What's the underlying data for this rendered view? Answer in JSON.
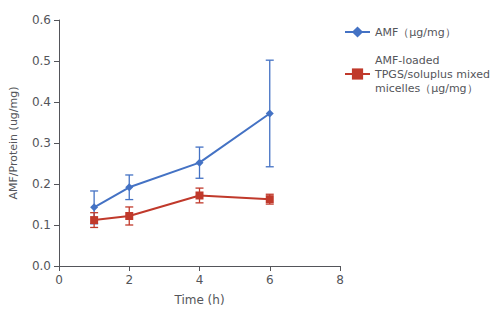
{
  "chart_data": {
    "type": "line",
    "xlabel": "Time (h)",
    "ylabel": "AMF/Protein (ug/mg)",
    "xlim": [
      0,
      8
    ],
    "ylim": [
      0,
      0.6
    ],
    "xticks": [
      0,
      2,
      4,
      6,
      8
    ],
    "yticks": [
      {
        "value": 0,
        "label": "0.0"
      },
      0.1,
      0.2,
      0.3,
      0.4,
      0.5,
      0.6
    ],
    "grid": false,
    "legend": "upper right",
    "series": [
      {
        "name": "AMF（μg/mg）",
        "color": "#4472c4",
        "marker": "diamond",
        "x": [
          1,
          2,
          4,
          6
        ],
        "values": [
          0.143,
          0.192,
          0.252,
          0.372
        ],
        "yerr": [
          0.04,
          0.03,
          0.038,
          0.13
        ]
      },
      {
        "name": "AMF-loaded\nTPGS/soluplus mixed\nmicelles（μg/mg）",
        "color": "#c0392b",
        "marker": "square",
        "x": [
          1,
          2,
          4,
          6
        ],
        "values": [
          0.112,
          0.122,
          0.172,
          0.163
        ],
        "yerr": [
          0.018,
          0.022,
          0.018,
          0.012
        ]
      }
    ]
  }
}
